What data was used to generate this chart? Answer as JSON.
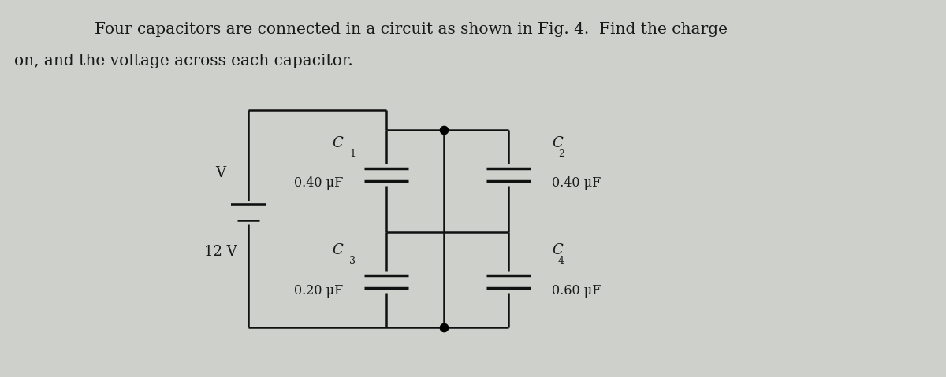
{
  "title_line1": "Four capacitors are connected in a circuit as shown in Fig. 4.  Find the charge",
  "title_line2": "on, and the voltage across each capacitor.",
  "bg_color": "#cdd0cb",
  "text_color": "#1a1a1a",
  "title_fontsize": 14.5,
  "label_fontsize": 13,
  "value_fontsize": 11.5,
  "voltage_label": "V",
  "voltage_value": "12 V",
  "C1_label": "C",
  "C1_sub": "1",
  "C2_label": "C",
  "C2_sub": "2",
  "C3_label": "C",
  "C3_sub": "3",
  "C4_label": "C",
  "C4_sub": "4",
  "C1_value": "0.40 μF",
  "C2_value": "0.40 μF",
  "C3_value": "0.20 μF",
  "C4_value": "0.60 μF",
  "wire_color": "#111111",
  "figsize": [
    12.0,
    4.79
  ],
  "dpi": 100
}
